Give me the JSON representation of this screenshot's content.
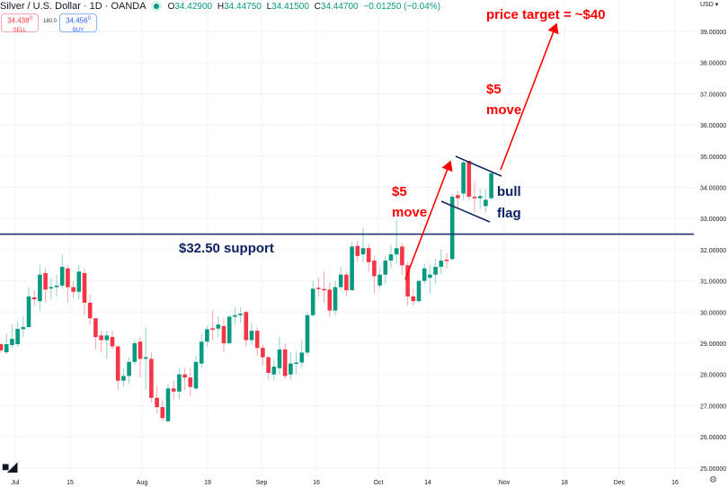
{
  "header": {
    "symbol": "Silver / U.S. Dollar · 1D · OANDA",
    "open_label": "O",
    "open": "34.42900",
    "high_label": "H",
    "high": "34.44750",
    "low_label": "L",
    "low": "34.41500",
    "close_label": "C",
    "close": "34.44700",
    "change": "−0.01250 (−0.04%)",
    "status_color": "#089981"
  },
  "trade": {
    "sell_price": "34.438",
    "sell_sup": "0",
    "sell_label": "SELL",
    "spread": "180.0",
    "buy_price": "34.456",
    "buy_sup": "0",
    "buy_label": "BUY"
  },
  "currency": "USD ▾",
  "logo": "TV",
  "icons": {
    "settings": "gear-icon",
    "logo": "tradingview-logo-icon"
  },
  "colors": {
    "up": "#089981",
    "down": "#f23645",
    "annotation_red": "#ff0000",
    "annotation_navy": "#0d2160",
    "support_line": "#1c3370"
  },
  "chart_data": {
    "type": "candlestick",
    "title": "",
    "ylim": [
      25,
      39
    ],
    "grid": true,
    "y_ticks": [
      "39.00000",
      "38.00000",
      "37.00000",
      "36.00000",
      "35.00000",
      "34.00000",
      "33.00000",
      "32.00000",
      "31.00000",
      "30.00000",
      "29.00000",
      "28.00000",
      "27.00000",
      "26.00000",
      "25.00000"
    ],
    "x_ticks": [
      "Jul",
      "15",
      "Aug",
      "19",
      "Sep",
      "16",
      "Oct",
      "14",
      "Nov",
      "18",
      "Dec",
      "16"
    ],
    "candles_ohlc": [
      [
        28.97,
        29.0,
        28.7,
        28.77
      ],
      [
        28.71,
        29.3,
        28.65,
        28.97
      ],
      [
        28.94,
        29.6,
        28.85,
        29.14
      ],
      [
        28.97,
        29.7,
        28.9,
        29.46
      ],
      [
        29.45,
        29.85,
        29.2,
        29.52
      ],
      [
        29.52,
        30.8,
        29.5,
        30.5
      ],
      [
        30.47,
        30.7,
        30.2,
        30.41
      ],
      [
        30.35,
        31.5,
        30.05,
        31.2
      ],
      [
        31.25,
        31.4,
        30.3,
        30.72
      ],
      [
        30.78,
        31.1,
        30.4,
        30.8
      ],
      [
        30.8,
        31.2,
        30.5,
        30.85
      ],
      [
        30.85,
        31.85,
        30.75,
        31.45
      ],
      [
        31.4,
        31.5,
        30.3,
        30.8
      ],
      [
        30.8,
        31.0,
        30.45,
        30.65
      ],
      [
        30.65,
        31.5,
        30.4,
        31.3
      ],
      [
        31.25,
        31.4,
        29.9,
        30.3
      ],
      [
        30.3,
        30.55,
        29.6,
        29.8
      ],
      [
        29.8,
        29.8,
        28.8,
        29.2
      ],
      [
        29.25,
        29.4,
        28.7,
        29.1
      ],
      [
        29.1,
        29.4,
        28.5,
        29.25
      ],
      [
        29.2,
        29.4,
        28.8,
        28.9
      ],
      [
        28.9,
        28.9,
        27.5,
        27.8
      ],
      [
        27.8,
        28.2,
        27.6,
        27.95
      ],
      [
        27.95,
        28.55,
        27.7,
        28.4
      ],
      [
        28.4,
        29.1,
        28.3,
        29.0
      ],
      [
        29.05,
        29.2,
        27.9,
        28.5
      ],
      [
        28.5,
        29.5,
        27.5,
        28.55
      ],
      [
        28.5,
        28.7,
        27.1,
        27.25
      ],
      [
        27.25,
        27.6,
        26.75,
        26.95
      ],
      [
        26.95,
        27.2,
        26.5,
        26.6
      ],
      [
        26.5,
        27.7,
        26.45,
        27.55
      ],
      [
        27.55,
        27.8,
        27.2,
        27.45
      ],
      [
        27.45,
        28.2,
        27.2,
        28.0
      ],
      [
        28.0,
        28.2,
        27.5,
        27.9
      ],
      [
        27.9,
        28.2,
        27.3,
        27.6
      ],
      [
        27.55,
        28.6,
        27.5,
        28.4
      ],
      [
        28.35,
        29.3,
        28.2,
        29.05
      ],
      [
        29.05,
        29.55,
        28.9,
        29.45
      ],
      [
        29.48,
        30.05,
        29.1,
        29.45
      ],
      [
        29.47,
        29.85,
        29.2,
        29.6
      ],
      [
        29.55,
        29.8,
        28.7,
        29.0
      ],
      [
        29.0,
        29.9,
        28.95,
        29.85
      ],
      [
        29.85,
        30.15,
        29.6,
        29.9
      ],
      [
        29.9,
        30.15,
        29.65,
        29.95
      ],
      [
        30.0,
        30.05,
        28.9,
        29.1
      ],
      [
        29.1,
        29.65,
        28.95,
        29.4
      ],
      [
        29.4,
        29.5,
        28.6,
        28.85
      ],
      [
        28.85,
        28.95,
        28.3,
        28.55
      ],
      [
        28.55,
        28.6,
        27.85,
        28.05
      ],
      [
        28.0,
        28.5,
        27.8,
        28.25
      ],
      [
        28.2,
        29.2,
        28.0,
        28.8
      ],
      [
        28.8,
        29.0,
        27.85,
        27.95
      ],
      [
        28.0,
        28.7,
        27.85,
        28.35
      ],
      [
        28.35,
        28.75,
        28.0,
        28.38
      ],
      [
        28.38,
        29.1,
        28.2,
        28.7
      ],
      [
        28.7,
        30.0,
        28.6,
        29.9
      ],
      [
        29.9,
        31.0,
        29.85,
        30.75
      ],
      [
        30.78,
        31.1,
        30.5,
        30.74
      ],
      [
        30.74,
        31.3,
        30.3,
        30.7
      ],
      [
        30.72,
        30.95,
        29.85,
        30.05
      ],
      [
        30.05,
        31.0,
        29.9,
        30.8
      ],
      [
        30.8,
        31.45,
        30.7,
        31.2
      ],
      [
        31.2,
        31.3,
        30.5,
        30.7
      ],
      [
        30.7,
        32.25,
        30.7,
        32.1
      ],
      [
        32.12,
        32.3,
        31.6,
        31.8
      ],
      [
        31.85,
        32.7,
        31.6,
        32.05
      ],
      [
        32.05,
        32.2,
        31.3,
        31.6
      ],
      [
        31.65,
        31.8,
        30.6,
        31.15
      ],
      [
        30.85,
        31.45,
        30.75,
        31.2
      ],
      [
        31.2,
        31.8,
        30.9,
        31.65
      ],
      [
        31.65,
        32.15,
        31.4,
        31.85
      ],
      [
        31.85,
        32.95,
        31.55,
        32.05
      ],
      [
        32.1,
        32.2,
        31.2,
        31.5
      ],
      [
        31.5,
        31.6,
        30.2,
        30.5
      ],
      [
        30.5,
        30.75,
        30.2,
        30.35
      ],
      [
        30.35,
        31.05,
        30.3,
        31.0
      ],
      [
        31.0,
        31.55,
        30.9,
        31.4
      ],
      [
        31.1,
        31.5,
        30.6,
        31.2
      ],
      [
        31.2,
        31.7,
        30.9,
        31.45
      ],
      [
        31.45,
        32.0,
        31.2,
        31.65
      ],
      [
        31.68,
        31.9,
        31.4,
        31.65
      ],
      [
        31.7,
        33.8,
        31.65,
        33.7
      ],
      [
        33.75,
        33.9,
        33.35,
        33.65
      ],
      [
        33.8,
        34.85,
        33.6,
        34.8
      ],
      [
        34.85,
        34.85,
        33.6,
        33.7
      ],
      [
        33.7,
        34.2,
        33.2,
        33.65
      ],
      [
        33.65,
        33.95,
        33.3,
        33.72
      ],
      [
        33.4,
        33.95,
        33.2,
        33.6
      ],
      [
        33.65,
        34.5,
        33.6,
        34.45
      ]
    ],
    "support": {
      "price": 32.5,
      "label": "$32.50 support"
    },
    "annotations": {
      "move1": [
        "$5",
        "move"
      ],
      "flag": [
        "bull",
        "flag"
      ],
      "move2": [
        "$5",
        "move"
      ],
      "target": "price target = ~$40"
    }
  }
}
